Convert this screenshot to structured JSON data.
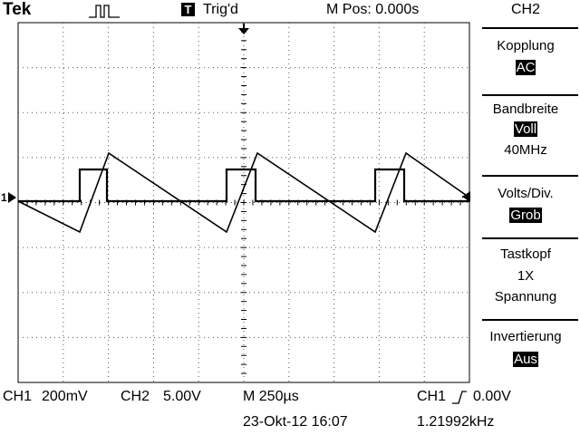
{
  "header": {
    "brand": "Tek",
    "acquisition_icon": "pulse-waveform-icon",
    "trigger_badge": "T",
    "trigger_status": "Trig'd",
    "main_position": "M Pos: 0.000s"
  },
  "side_menu": {
    "title": "CH2",
    "items": [
      {
        "label": "Kopplung",
        "value": "AC",
        "value_highlighted": true
      },
      {
        "label": "Bandbreite",
        "value": "Voll",
        "value_highlighted": true,
        "extra": "40MHz"
      },
      {
        "label": "Volts/Div.",
        "value": "Grob",
        "value_highlighted": true
      },
      {
        "label": "Tastkopf",
        "value": "1X",
        "value_highlighted": false,
        "extra": "Spannung"
      },
      {
        "label": "Invertierung",
        "value": "Aus",
        "value_highlighted": true
      }
    ]
  },
  "footer": {
    "ch1_label": "CH1",
    "ch1_scale": "200mV",
    "ch2_label": "CH2",
    "ch2_scale": "5.00V",
    "timebase": "M 250µs",
    "trigger_source": "CH1",
    "trigger_slope_icon": "rising-edge-icon",
    "trigger_level": "0.00V",
    "date": "23-Okt-12 16:07",
    "frequency": "1.21992kHz"
  },
  "display": {
    "ground_marker": "1",
    "trace_color": "#000000",
    "background_color": "#ffffff",
    "grid_divisions_x": 10,
    "grid_divisions_y": 8
  }
}
